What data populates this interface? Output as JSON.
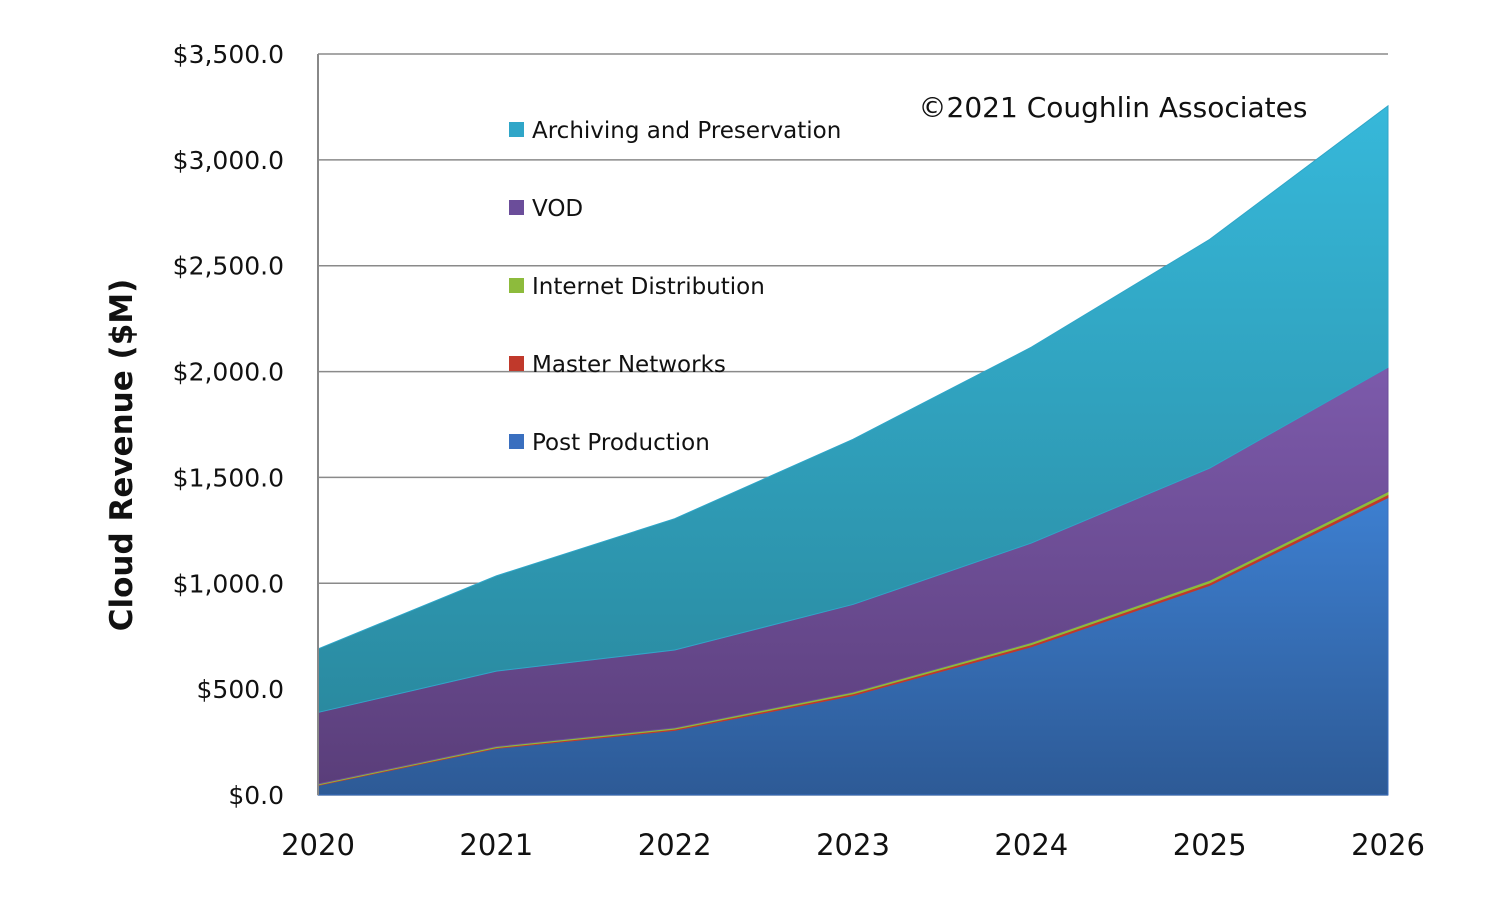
{
  "chart_data": {
    "type": "area",
    "stacked": true,
    "title": "",
    "xlabel": "",
    "ylabel": "Cloud Revenue ($M)",
    "annotation": "©2021 Coughlin Associates",
    "ylim": [
      0,
      3500
    ],
    "yticks": [
      "$0.0",
      "$500.0",
      "$1,000.0",
      "$1,500.0",
      "$2,000.0",
      "$2,500.0",
      "$3,000.0",
      "$3,500.0"
    ],
    "ytick_values": [
      0,
      500,
      1000,
      1500,
      2000,
      2500,
      3000,
      3500
    ],
    "categories": [
      "2020",
      "2021",
      "2022",
      "2023",
      "2024",
      "2025",
      "2026"
    ],
    "grid": "horizontal",
    "legend_position": "top-left",
    "series": [
      {
        "name": "Post Production",
        "color": "#3a6fbf",
        "values": [
          45,
          220,
          305,
          470,
          700,
          990,
          1405
        ]
      },
      {
        "name": "Master Networks",
        "color": "#c0392b",
        "values": [
          3,
          4,
          6,
          8,
          10,
          12,
          14
        ]
      },
      {
        "name": "Internet Distribution",
        "color": "#8dbb3c",
        "values": [
          4,
          5,
          6,
          8,
          10,
          12,
          14
        ]
      },
      {
        "name": "VOD",
        "color": "#6b4d9a",
        "values": [
          338,
          356,
          368,
          414,
          470,
          530,
          587
        ]
      },
      {
        "name": "Archiving and Preservation",
        "color": "#30a6c8",
        "values": [
          300,
          450,
          620,
          780,
          925,
          1080,
          1235
        ]
      }
    ],
    "legend_order": [
      "Archiving and Preservation",
      "VOD",
      "Internet Distribution",
      "Master Networks",
      "Post Production"
    ]
  }
}
